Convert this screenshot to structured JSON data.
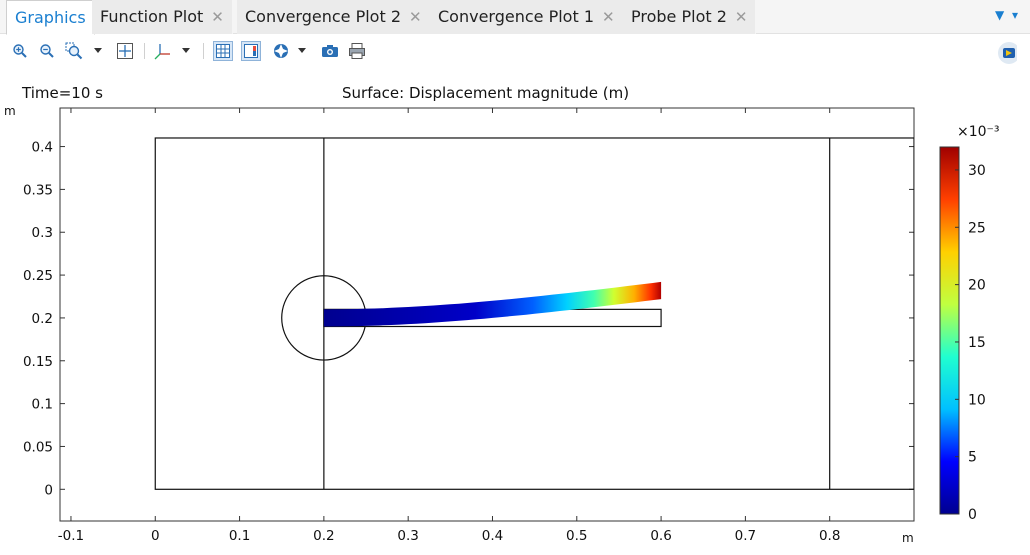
{
  "tabs": [
    {
      "label": "Graphics",
      "active": true,
      "closable": false
    },
    {
      "label": "Function Plot",
      "active": false,
      "closable": true
    },
    {
      "label": "Convergence Plot 2",
      "active": false,
      "closable": true
    },
    {
      "label": "Convergence Plot 1",
      "active": false,
      "closable": true
    },
    {
      "label": "Probe Plot 2",
      "active": false,
      "closable": true
    }
  ],
  "tab_close_glyph": "✕",
  "toolbar": {
    "icons": [
      "zoom-in-icon",
      "zoom-out-icon",
      "zoom-box-icon",
      "zoom-extents-icon",
      "axis-orientation-icon",
      "show-grid-icon",
      "show-legend-icon",
      "color-table-icon",
      "screenshot-icon",
      "print-icon"
    ]
  },
  "plot": {
    "time_label": "Time=10 s",
    "title": "Surface: Displacement magnitude (m)",
    "y_unit": "m",
    "x_unit": "m",
    "x_ticks": [
      "-0.1",
      "0",
      "0.1",
      "0.2",
      "0.3",
      "0.4",
      "0.5",
      "0.6",
      "0.7",
      "0.8"
    ],
    "y_ticks": [
      "0",
      "0.05",
      "0.1",
      "0.15",
      "0.2",
      "0.25",
      "0.3",
      "0.35",
      "0.4"
    ],
    "xlim": [
      -0.113,
      0.9
    ],
    "ylim": [
      -0.037,
      0.445
    ],
    "domain": {
      "x0": 0,
      "x1": 0.9,
      "y0": 0,
      "y1": 0.41
    },
    "vertical_lines_x": [
      0.2,
      0.8
    ],
    "cylinder": {
      "cx": 0.2,
      "cy": 0.2,
      "r": 0.05
    },
    "beam_reference": {
      "x0": 0.2,
      "x1": 0.6,
      "y0": 0.19,
      "y1": 0.21
    },
    "beam_tip_deflection_y": 0.032
  },
  "colorbar": {
    "exponent_label": "×10⁻³",
    "ticks": [
      "0",
      "5",
      "10",
      "15",
      "20",
      "25",
      "30"
    ],
    "max": 32,
    "colors": [
      "#00008f",
      "#0000ff",
      "#00c0ff",
      "#20ffd0",
      "#c0ff40",
      "#ffd000",
      "#ff4000",
      "#a00000"
    ]
  }
}
